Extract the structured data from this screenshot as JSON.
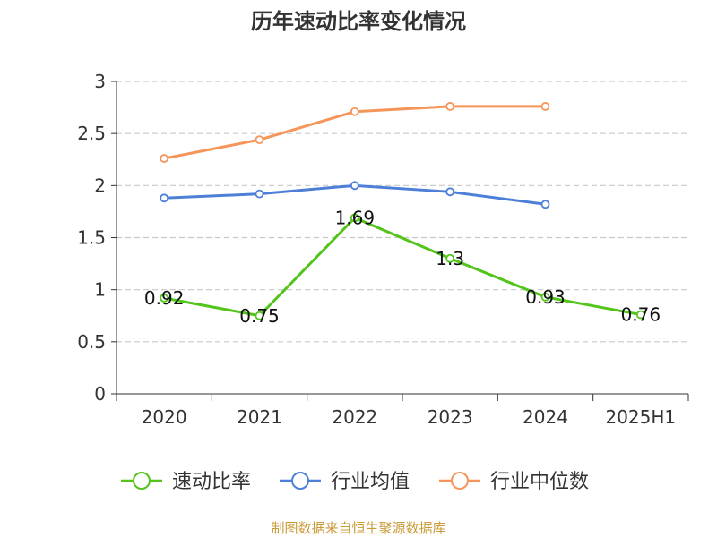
{
  "chart_data": {
    "type": "line",
    "title": "历年速动比率变化情况",
    "xlabel": "",
    "ylabel": "",
    "categories": [
      "2020",
      "2021",
      "2022",
      "2023",
      "2024",
      "2025H1"
    ],
    "ylim": [
      0,
      3
    ],
    "yticks": [
      "0",
      "0.5",
      "1",
      "1.5",
      "2",
      "2.5",
      "3"
    ],
    "grid": true,
    "legend_position": "bottom",
    "series": [
      {
        "name": "速动比率",
        "color": "#52c41a",
        "values": [
          0.92,
          0.75,
          1.69,
          1.3,
          0.93,
          0.76
        ],
        "labels": [
          "0.92",
          "0.75",
          "1.69",
          "1.3",
          "0.93",
          "0.76"
        ]
      },
      {
        "name": "行业均值",
        "color": "#4e7fd8",
        "values": [
          1.88,
          1.92,
          2.0,
          1.94,
          1.82,
          null
        ],
        "labels": []
      },
      {
        "name": "行业中位数",
        "color": "#f5955a",
        "values": [
          2.26,
          2.44,
          2.71,
          2.76,
          2.76,
          null
        ],
        "labels": []
      }
    ],
    "source": "制图数据来自恒生聚源数据库"
  },
  "colors": {
    "source_text": "#c99a37",
    "axis": "#333333",
    "grid": "#c8c8c8"
  }
}
